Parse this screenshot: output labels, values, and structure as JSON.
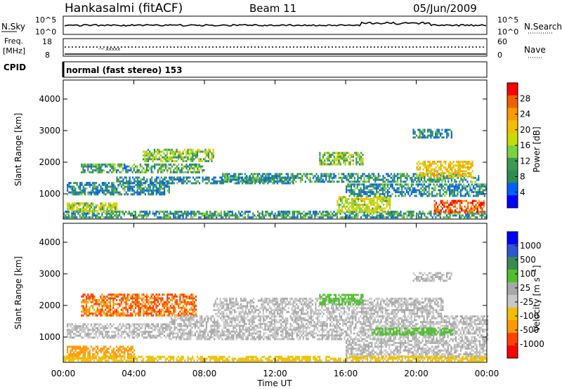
{
  "header": {
    "station": "Hankasalmi (fitACF)",
    "beam": "Beam 11",
    "date": "05/Jun/2009"
  },
  "sky_panel": {
    "left_label": "N.Sky",
    "right_label": "N.Search",
    "y_top": "10^5",
    "y_bottom": "10^0",
    "right_top": "10^5",
    "right_bottom": "10^0"
  },
  "freq_panel": {
    "left_label": "Freq.",
    "units": "[MHz]",
    "y_top": "18",
    "y_bottom": "8",
    "right_label": "Nave",
    "right_top": "60",
    "right_bottom": "0"
  },
  "cpid_panel": {
    "label": "CPID",
    "mode": "normal (fast stereo) 153"
  },
  "power_colorbar": {
    "title": "Power [dB]",
    "ticks": [
      "28",
      "24",
      "20",
      "16",
      "12",
      "8",
      "4"
    ],
    "colors": [
      "#ff0000",
      "#f06000",
      "#ff9900",
      "#f0c000",
      "#c8dc00",
      "#7ad23c",
      "#3c9a50",
      "#2e8b57",
      "#0060ff",
      "#0000ff"
    ]
  },
  "velocity_colorbar": {
    "title": "Velocity [m s^-1]",
    "ticks": [
      "1000",
      "500",
      "100",
      "25",
      "-25",
      "-100",
      "-500",
      "-1000"
    ],
    "colors": [
      "#0000ff",
      "#2e56d0",
      "#3c8a50",
      "#50c030",
      "#a8a8a8",
      "#c8c8c8",
      "#f0c000",
      "#ff9900",
      "#ff4000",
      "#ff0000"
    ]
  },
  "chart_data": [
    {
      "type": "heatmap",
      "name": "power",
      "ylabel": "Slant Range [km]",
      "xlabel": "Time UT",
      "x_ticks": [
        "00:00",
        "04:00",
        "08:00",
        "12:00",
        "16:00",
        "20:00",
        "00:00"
      ],
      "y_ticks": [
        1000,
        2000,
        3000,
        4000
      ],
      "ylim": [
        200,
        4600
      ],
      "xlim_hours": [
        0,
        24
      ],
      "colorbar_range_db": [
        0,
        32
      ],
      "regions": [
        {
          "t0": 0.0,
          "t1": 24.0,
          "r0": 220,
          "r1": 420,
          "value": 10
        },
        {
          "t0": 0.2,
          "t1": 6.0,
          "r0": 950,
          "r1": 1350,
          "value": 9
        },
        {
          "t0": 0.2,
          "t1": 3.0,
          "r0": 420,
          "r1": 700,
          "value": 14
        },
        {
          "t0": 1.0,
          "t1": 8.0,
          "r0": 1650,
          "r1": 1950,
          "value": 11
        },
        {
          "t0": 4.5,
          "t1": 8.5,
          "r0": 2000,
          "r1": 2400,
          "value": 13
        },
        {
          "t0": 3.0,
          "t1": 13.0,
          "r0": 1300,
          "r1": 1500,
          "value": 9
        },
        {
          "t0": 9.0,
          "t1": 23.5,
          "r0": 1350,
          "r1": 1650,
          "value": 10
        },
        {
          "t0": 14.5,
          "t1": 17.0,
          "r0": 1900,
          "r1": 2300,
          "value": 13
        },
        {
          "t0": 19.8,
          "t1": 22.0,
          "r0": 2750,
          "r1": 3000,
          "value": 9
        },
        {
          "t0": 20.0,
          "t1": 23.2,
          "r0": 1500,
          "r1": 2000,
          "value": 18
        },
        {
          "t0": 15.5,
          "t1": 18.5,
          "r0": 380,
          "r1": 900,
          "value": 15
        },
        {
          "t0": 21.0,
          "t1": 23.8,
          "r0": 380,
          "r1": 800,
          "value": 24
        },
        {
          "t0": 16.0,
          "t1": 24.0,
          "r0": 900,
          "r1": 1300,
          "value": 9
        }
      ]
    },
    {
      "type": "heatmap",
      "name": "velocity",
      "ylabel": "Slant Range [km]",
      "xlabel": "Time UT",
      "x_ticks": [
        "00:00",
        "04:00",
        "08:00",
        "12:00",
        "16:00",
        "20:00",
        "00:00"
      ],
      "y_ticks": [
        1000,
        2000,
        3000,
        4000
      ],
      "ylim": [
        200,
        4600
      ],
      "xlim_hours": [
        0,
        24
      ],
      "regions": [
        {
          "t0": 1.0,
          "t1": 7.5,
          "r0": 1650,
          "r1": 2350,
          "value": -300
        },
        {
          "t0": 0.2,
          "t1": 4.0,
          "r0": 300,
          "r1": 700,
          "value": -120
        },
        {
          "t0": 0.2,
          "t1": 6.0,
          "r0": 950,
          "r1": 1400,
          "value": 0
        },
        {
          "t0": 6.0,
          "t1": 24.0,
          "r0": 900,
          "r1": 1650,
          "value": 0
        },
        {
          "t0": 8.5,
          "t1": 21.5,
          "r0": 1700,
          "r1": 2200,
          "value": 0
        },
        {
          "t0": 14.5,
          "t1": 17.0,
          "r0": 2000,
          "r1": 2350,
          "value": 60
        },
        {
          "t0": 16.0,
          "t1": 24.0,
          "r0": 300,
          "r1": 900,
          "value": 0
        },
        {
          "t0": 17.5,
          "t1": 22.0,
          "r0": 1050,
          "r1": 1250,
          "value": 60
        },
        {
          "t0": 0.0,
          "t1": 24.0,
          "r0": 220,
          "r1": 380,
          "value": -60
        },
        {
          "t0": 19.8,
          "t1": 22.0,
          "r0": 2750,
          "r1": 3000,
          "value": 0
        }
      ]
    }
  ]
}
